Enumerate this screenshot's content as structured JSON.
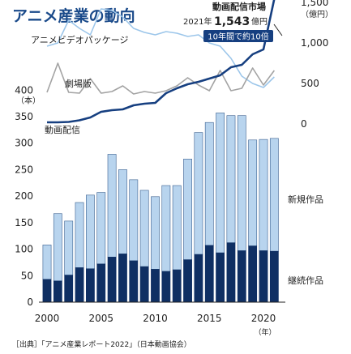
{
  "title": "アニメ産業の動向",
  "source": "［出典］「アニメ産業レポート2022」（日本動画協会）",
  "callout": {
    "label": "動画配信市場",
    "year_prefix": "2021年",
    "value": "1,543",
    "value_unit": "億円",
    "badge": "10年間で約10倍"
  },
  "colors": {
    "title": "#1a4a8a",
    "bar_new": "#b8d4ee",
    "bar_continuing": "#0f2f63",
    "bar_outline": "#3a5f8f",
    "line_video": "#9cc6ea",
    "line_theater": "#a3a3a3",
    "line_streaming": "#163f80",
    "axis": "#222222",
    "badge_bg": "#163f80",
    "badge_text": "#ffffff"
  },
  "chart_data": [
    {
      "type": "bar",
      "stacked": true,
      "x": [
        2000,
        2001,
        2002,
        2003,
        2004,
        2005,
        2006,
        2007,
        2008,
        2009,
        2010,
        2011,
        2012,
        2013,
        2014,
        2015,
        2016,
        2017,
        2018,
        2019,
        2020,
        2021
      ],
      "series": [
        {
          "name": "継続作品",
          "values": [
            43,
            40,
            51,
            65,
            63,
            72,
            85,
            91,
            78,
            67,
            62,
            58,
            61,
            80,
            90,
            107,
            93,
            112,
            97,
            106,
            97,
            96
          ]
        },
        {
          "name": "新規作品",
          "values": [
            65,
            127,
            102,
            123,
            139,
            135,
            194,
            159,
            153,
            144,
            137,
            162,
            159,
            190,
            230,
            232,
            264,
            240,
            255,
            200,
            210,
            213
          ]
        }
      ],
      "ylabel": "（本）",
      "y_ticks": [
        0,
        50,
        100,
        150,
        200,
        250,
        300,
        350,
        400
      ],
      "ylim": [
        0,
        400
      ],
      "x_ticks": [
        2000,
        2005,
        2010,
        2015,
        2020
      ],
      "x_unit": "（年）"
    },
    {
      "type": "line",
      "x": [
        2000,
        2001,
        2002,
        2003,
        2004,
        2005,
        2006,
        2007,
        2008,
        2009,
        2010,
        2011,
        2012,
        2013,
        2014,
        2015,
        2016,
        2017,
        2018,
        2019,
        2020,
        2021
      ],
      "series": [
        {
          "name": "アニメビデオパッケージ",
          "values": [
            960,
            1000,
            1280,
            1180,
            1100,
            1420,
            1400,
            1320,
            1180,
            1130,
            1100,
            1140,
            1120,
            1080,
            1100,
            1000,
            960,
            810,
            590,
            500,
            450,
            580
          ]
        },
        {
          "name": "劇場版",
          "values": [
            390,
            750,
            390,
            380,
            560,
            380,
            400,
            470,
            370,
            400,
            380,
            410,
            470,
            570,
            480,
            410,
            660,
            410,
            440,
            690,
            480,
            660
          ]
        },
        {
          "name": "動画配信",
          "values": [
            20,
            20,
            25,
            45,
            80,
            150,
            170,
            180,
            230,
            250,
            260,
            380,
            440,
            490,
            520,
            560,
            600,
            700,
            730,
            860,
            920,
            1543
          ]
        }
      ],
      "ylabel": "（億円）",
      "y_ticks": [
        0,
        500,
        1000,
        1500
      ],
      "ylim": [
        0,
        1500
      ]
    }
  ],
  "labels": {
    "video": "アニメビデオパッケージ",
    "theater": "劇場版",
    "streaming": "動画配信",
    "new_works": "新規作品",
    "continuing_works": "継続作品"
  }
}
